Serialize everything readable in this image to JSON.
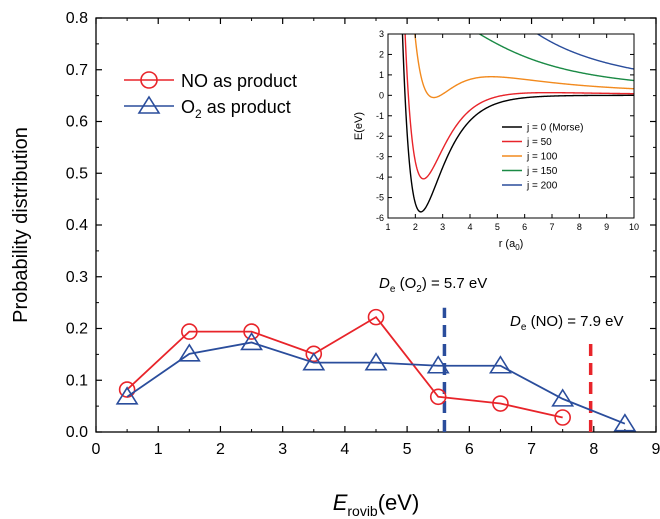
{
  "chart_data": [
    {
      "type": "line",
      "xlabel": "E",
      "xlabel_sub": "rovib",
      "xlabel_unit": "(eV)",
      "ylabel": "Probability distribution",
      "xlim": [
        0,
        9
      ],
      "ylim": [
        0,
        0.8
      ],
      "x_ticks": [
        "0",
        "1",
        "2",
        "3",
        "4",
        "5",
        "6",
        "7",
        "8",
        "9"
      ],
      "y_ticks": [
        "0.0",
        "0.1",
        "0.2",
        "0.3",
        "0.4",
        "0.5",
        "0.6",
        "0.7",
        "0.8"
      ],
      "legend_position": "upper-left",
      "series": [
        {
          "name": "NO as product",
          "color": "#e8242a",
          "marker": "circle",
          "x": [
            0.5,
            1.5,
            2.5,
            3.5,
            4.5,
            5.5,
            6.5,
            7.5
          ],
          "y": [
            0.082,
            0.194,
            0.194,
            0.151,
            0.222,
            0.068,
            0.055,
            0.028
          ]
        },
        {
          "name": "O",
          "name_sub": "2",
          "name_rest": " as product",
          "color": "#2a4d9c",
          "marker": "triangle",
          "x": [
            0.5,
            1.5,
            2.5,
            3.5,
            4.5,
            5.5,
            6.5,
            7.5,
            8.5
          ],
          "y": [
            0.068,
            0.151,
            0.173,
            0.134,
            0.134,
            0.128,
            0.128,
            0.064,
            0.016
          ]
        }
      ],
      "annotations": [
        {
          "kind": "vline",
          "x": 5.6,
          "y_range": [
            0,
            0.24
          ],
          "color": "#2a4d9c",
          "prefix": "D",
          "sub": "e",
          "text": " (O",
          "sub2": "2",
          "text2": ") = 5.7 eV"
        },
        {
          "kind": "vline",
          "x": 7.95,
          "y_range": [
            0,
            0.18
          ],
          "color": "#e8242a",
          "prefix": "D",
          "sub": "e",
          "text": " (NO) = 7.9 eV"
        }
      ]
    },
    {
      "type": "line",
      "inset": true,
      "xlabel": "r (a",
      "xlabel_sub": "0",
      "xlabel_end": ")",
      "ylabel": "E(eV)",
      "xlim": [
        1,
        10
      ],
      "ylim": [
        -6,
        3
      ],
      "x_ticks": [
        "1",
        "2",
        "3",
        "4",
        "5",
        "6",
        "7",
        "8",
        "9",
        "10"
      ],
      "y_ticks": [
        "-6",
        "-5",
        "-4",
        "-3",
        "-2",
        "-1",
        "0",
        "1",
        "2",
        "3"
      ],
      "legend_position": "lower-right",
      "morse": {
        "De": 5.7,
        "a": 1.2,
        "re": 2.2,
        "C": 32
      },
      "series": [
        {
          "name": "j = 0 (Morse)",
          "j": 0,
          "color": "#000000"
        },
        {
          "name": "j = 50",
          "j": 50,
          "color": "#e8242a"
        },
        {
          "name": "j = 100",
          "j": 100,
          "color": "#f28a1e"
        },
        {
          "name": "j = 150",
          "j": 150,
          "color": "#1a8a45"
        },
        {
          "name": "j = 200",
          "j": 200,
          "color": "#2a4d9c"
        }
      ]
    }
  ]
}
